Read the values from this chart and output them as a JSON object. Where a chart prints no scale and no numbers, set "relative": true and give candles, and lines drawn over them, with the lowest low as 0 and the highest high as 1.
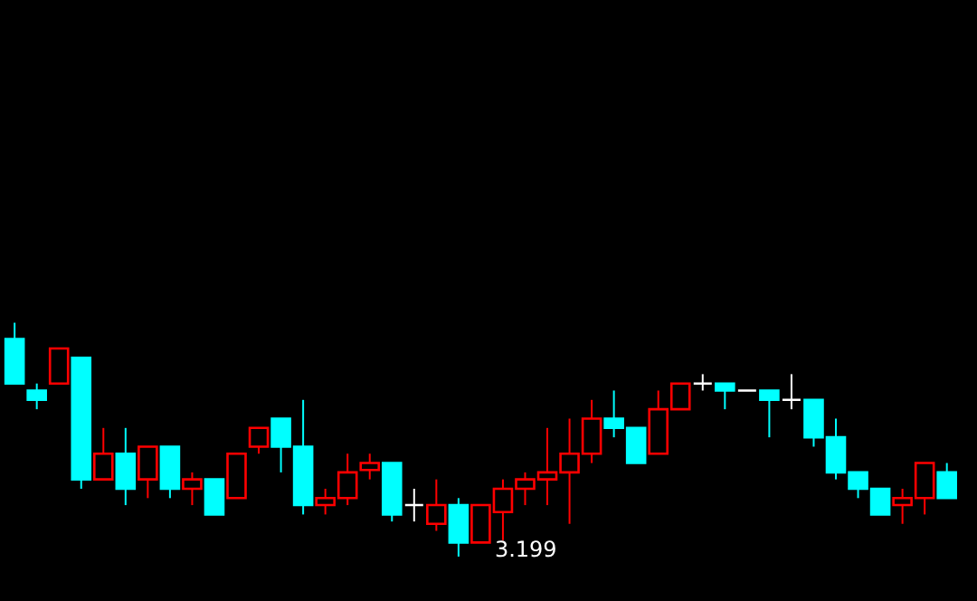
{
  "chart_data": {
    "type": "candlestick",
    "relative": true,
    "categories": [
      null,
      null,
      null,
      null,
      null,
      null,
      null,
      null,
      null,
      null,
      null,
      null,
      null,
      null,
      null,
      null,
      null,
      null,
      null,
      null,
      null,
      null,
      null,
      null,
      null,
      null,
      null,
      null,
      null,
      null,
      null,
      null,
      null,
      null,
      null,
      null,
      null,
      null,
      null,
      null,
      null,
      null,
      null
    ],
    "ohlc": [
      [
        0.93,
        1.0,
        0.74,
        0.74
      ],
      [
        0.71,
        0.74,
        0.63,
        0.67
      ],
      [
        0.74,
        0.89,
        0.74,
        0.89
      ],
      [
        0.85,
        0.85,
        0.29,
        0.33
      ],
      [
        0.33,
        0.55,
        0.33,
        0.44
      ],
      [
        0.44,
        0.55,
        0.22,
        0.29
      ],
      [
        0.33,
        0.47,
        0.25,
        0.47
      ],
      [
        0.47,
        0.47,
        0.25,
        0.29
      ],
      [
        0.29,
        0.36,
        0.22,
        0.33
      ],
      [
        0.33,
        0.33,
        0.18,
        0.18
      ],
      [
        0.25,
        0.44,
        0.25,
        0.44
      ],
      [
        0.47,
        0.55,
        0.44,
        0.55
      ],
      [
        0.59,
        0.59,
        0.36,
        0.47
      ],
      [
        0.47,
        0.67,
        0.18,
        0.22
      ],
      [
        0.22,
        0.29,
        0.18,
        0.25
      ],
      [
        0.25,
        0.44,
        0.22,
        0.36
      ],
      [
        0.37,
        0.44,
        0.33,
        0.4
      ],
      [
        0.4,
        0.4,
        0.15,
        0.18
      ],
      [
        0.22,
        0.29,
        0.15,
        0.22
      ],
      [
        0.14,
        0.33,
        0.11,
        0.22
      ],
      [
        0.22,
        0.25,
        0.0,
        0.06
      ],
      [
        0.06,
        0.22,
        0.06,
        0.22
      ],
      [
        0.19,
        0.33,
        0.07,
        0.29
      ],
      [
        0.29,
        0.36,
        0.22,
        0.33
      ],
      [
        0.33,
        0.55,
        0.22,
        0.36
      ],
      [
        0.36,
        0.59,
        0.14,
        0.44
      ],
      [
        0.44,
        0.67,
        0.4,
        0.59
      ],
      [
        0.59,
        0.71,
        0.51,
        0.55
      ],
      [
        0.55,
        0.55,
        0.4,
        0.4
      ],
      [
        0.44,
        0.71,
        0.44,
        0.63
      ],
      [
        0.63,
        0.74,
        0.63,
        0.74
      ],
      [
        0.74,
        0.78,
        0.71,
        0.74
      ],
      [
        0.74,
        0.74,
        0.63,
        0.71
      ],
      [
        0.71,
        0.71,
        0.71,
        0.71
      ],
      [
        0.71,
        0.71,
        0.51,
        0.67
      ],
      [
        0.67,
        0.78,
        0.63,
        0.67
      ],
      [
        0.67,
        0.67,
        0.47,
        0.51
      ],
      [
        0.51,
        0.59,
        0.33,
        0.36
      ],
      [
        0.36,
        0.36,
        0.25,
        0.29
      ],
      [
        0.29,
        0.29,
        0.18,
        0.18
      ],
      [
        0.22,
        0.29,
        0.14,
        0.25
      ],
      [
        0.25,
        0.4,
        0.18,
        0.4
      ],
      [
        0.36,
        0.4,
        0.25,
        0.25
      ]
    ],
    "colors": [
      "#00ffff",
      "#00ffff",
      "#ff0000",
      "#00ffff",
      "#ff0000",
      "#00ffff",
      "#ff0000",
      "#00ffff",
      "#ff0000",
      "#00ffff",
      "#ff0000",
      "#ff0000",
      "#00ffff",
      "#00ffff",
      "#ff0000",
      "#ff0000",
      "#ff0000",
      "#00ffff",
      "#ffffff",
      "#ff0000",
      "#00ffff",
      "#ff0000",
      "#ff0000",
      "#ff0000",
      "#ff0000",
      "#ff0000",
      "#ff0000",
      "#00ffff",
      "#00ffff",
      "#ff0000",
      "#ff0000",
      "#ffffff",
      "#00ffff",
      "#ffffff",
      "#00ffff",
      "#ffffff",
      "#00ffff",
      "#00ffff",
      "#00ffff",
      "#00ffff",
      "#ff0000",
      "#ff0000",
      "#00ffff"
    ],
    "annotations": [
      "3.199"
    ]
  }
}
